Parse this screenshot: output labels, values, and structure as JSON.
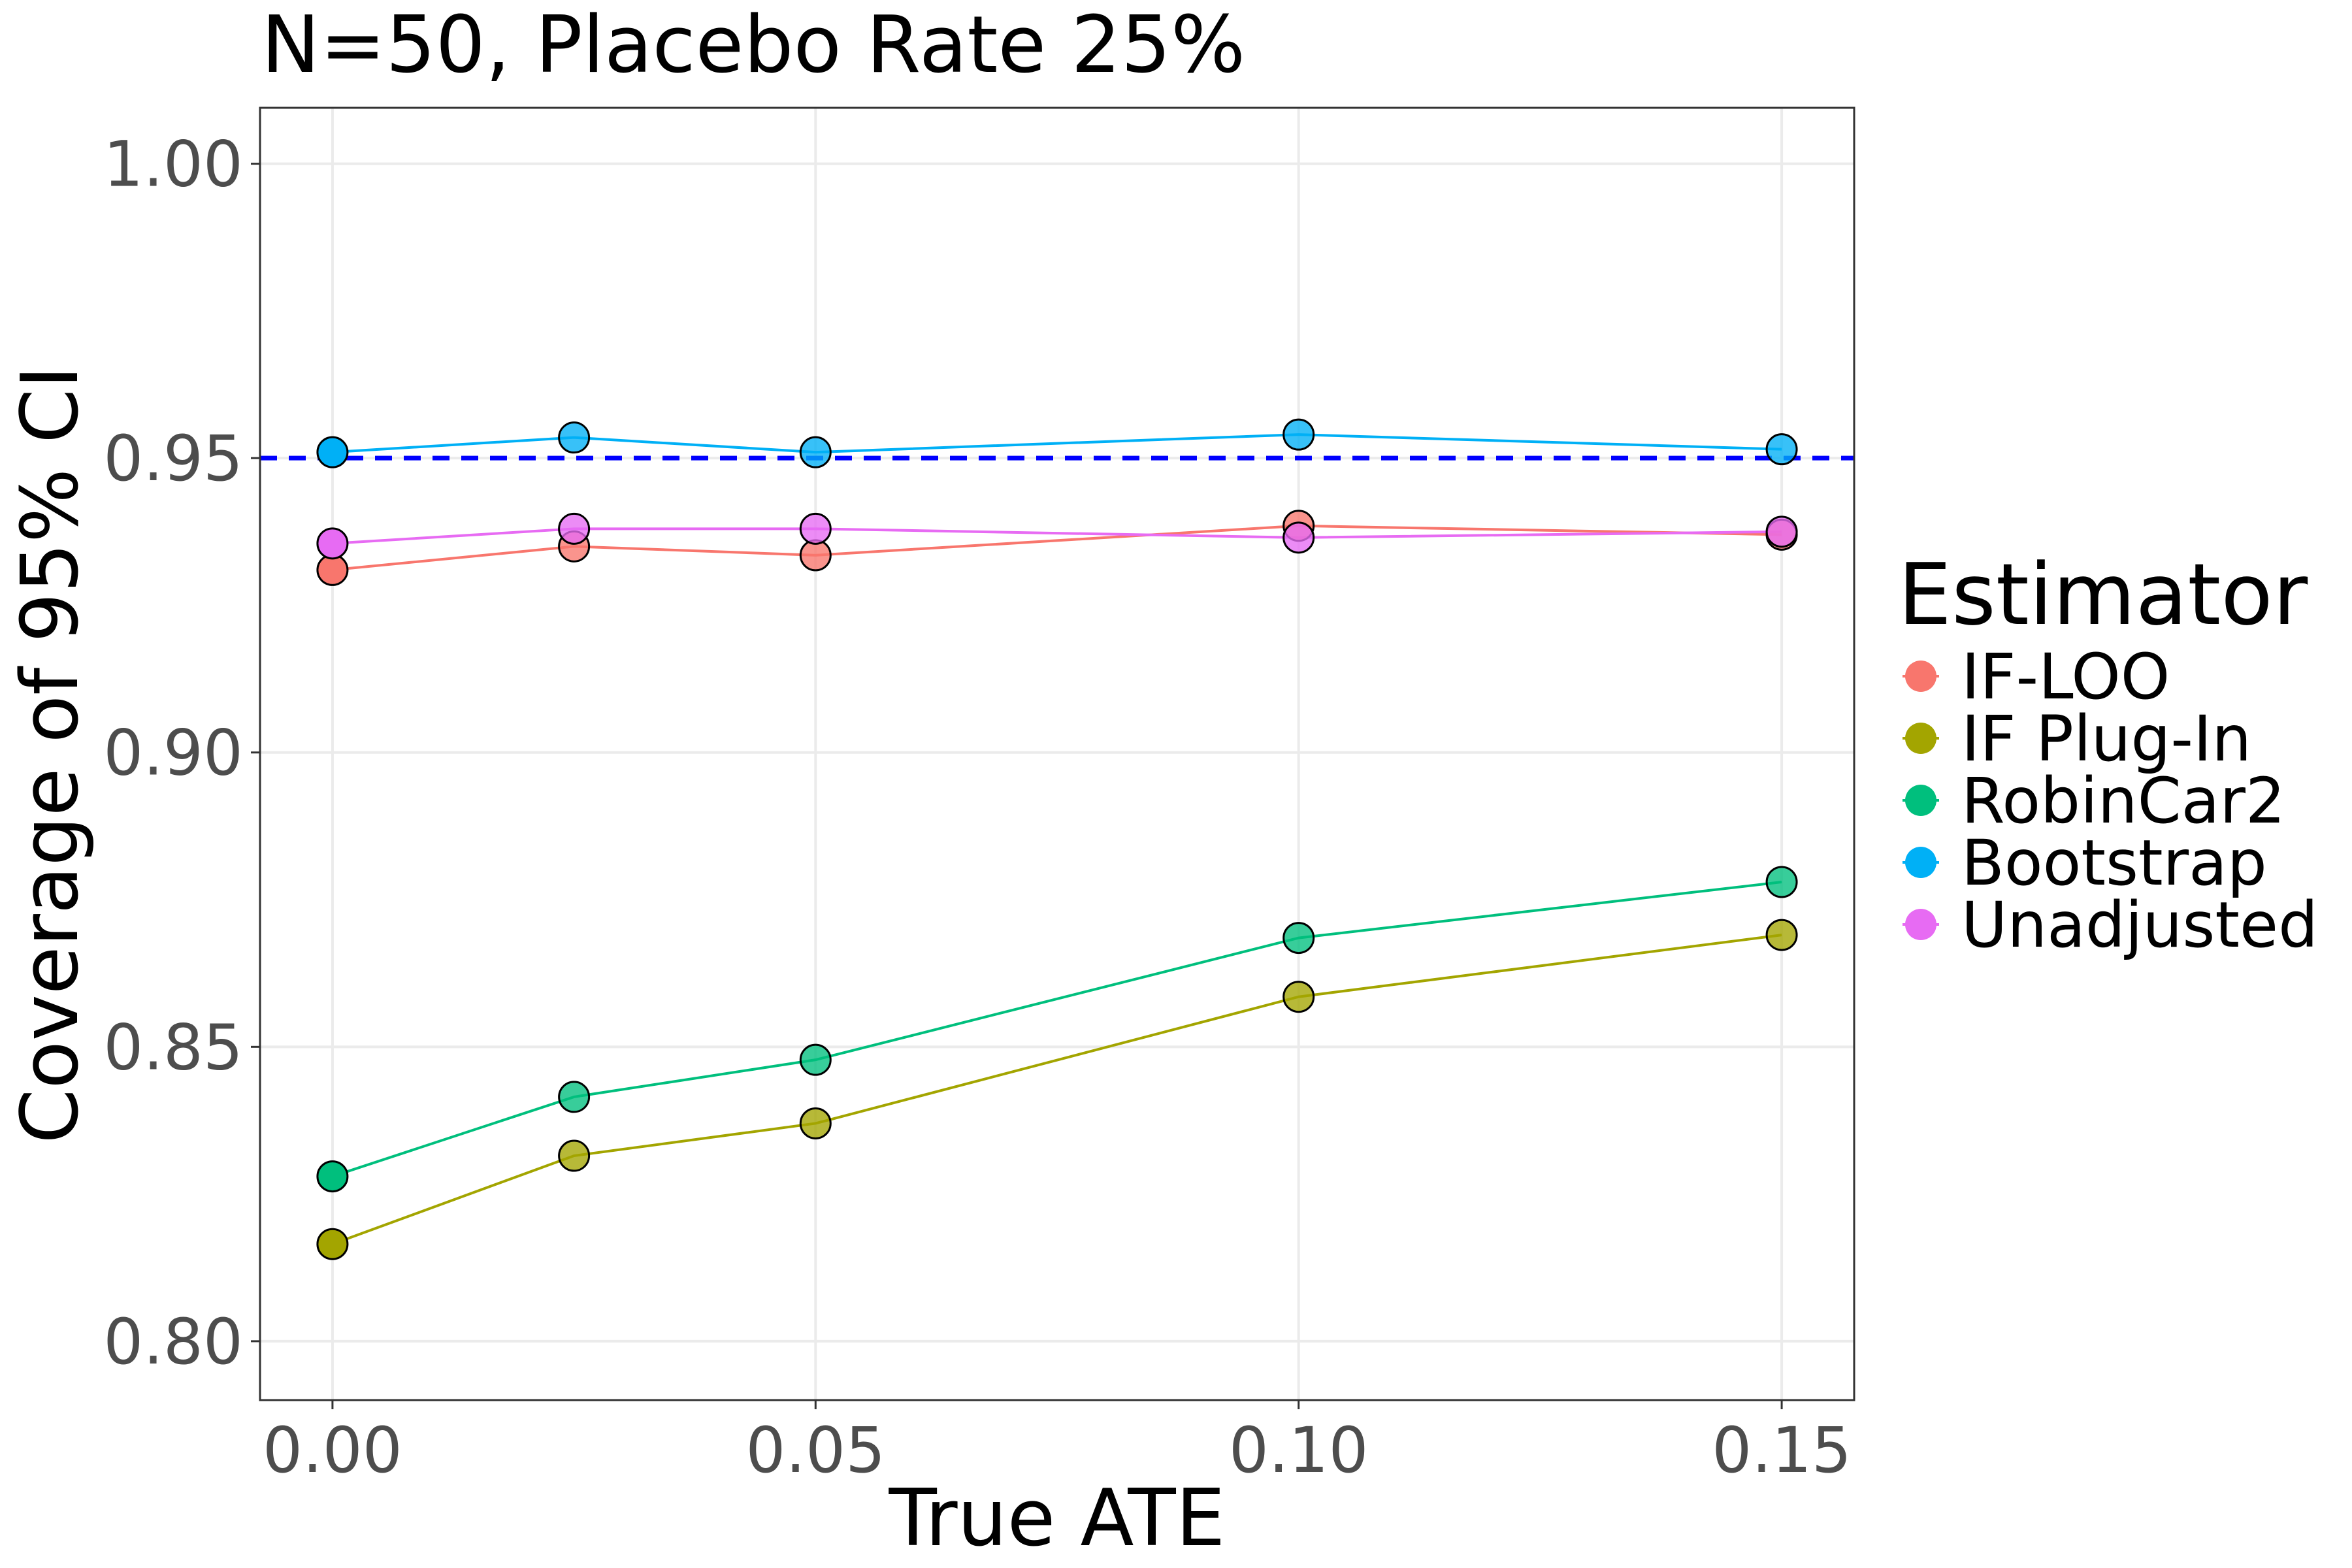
{
  "chart_data": {
    "type": "line",
    "title": "N=50, Placebo Rate 25%",
    "xlabel": "True ATE",
    "ylabel": "Coverage of 95% CI",
    "x": [
      0.0,
      0.025,
      0.05,
      0.1,
      0.15
    ],
    "xlim": [
      -0.0075,
      0.1575
    ],
    "ylim": [
      0.79,
      1.0095
    ],
    "x_ticks": [
      {
        "value": 0.0,
        "label": "0.00"
      },
      {
        "value": 0.05,
        "label": "0.05"
      },
      {
        "value": 0.1,
        "label": "0.10"
      },
      {
        "value": 0.15,
        "label": "0.15"
      }
    ],
    "y_ticks": [
      {
        "value": 0.8,
        "label": "0.80"
      },
      {
        "value": 0.85,
        "label": "0.85"
      },
      {
        "value": 0.9,
        "label": "0.90"
      },
      {
        "value": 0.95,
        "label": "0.95"
      },
      {
        "value": 1.0,
        "label": "1.00"
      }
    ],
    "grid": true,
    "reference_line": {
      "y": 0.95,
      "style": "dashed",
      "color": "#0000ff"
    },
    "legend": {
      "title": "Estimator",
      "position": "right"
    },
    "series": [
      {
        "name": "IF-LOO",
        "color": "#f8766d",
        "values": [
          0.931,
          0.935,
          0.9335,
          0.9385,
          0.937
        ]
      },
      {
        "name": "IF Plug-In",
        "color": "#a3a500",
        "values": [
          0.8165,
          0.8315,
          0.837,
          0.8585,
          0.869
        ]
      },
      {
        "name": "RobinCar2",
        "color": "#00bf7d",
        "values": [
          0.828,
          0.8415,
          0.8478,
          0.8685,
          0.878
        ]
      },
      {
        "name": "Bootstrap",
        "color": "#00b0f6",
        "values": [
          0.951,
          0.9535,
          0.951,
          0.954,
          0.9515
        ]
      },
      {
        "name": "Unadjusted",
        "color": "#e76bf3",
        "values": [
          0.9355,
          0.938,
          0.938,
          0.9365,
          0.9375
        ]
      }
    ]
  }
}
